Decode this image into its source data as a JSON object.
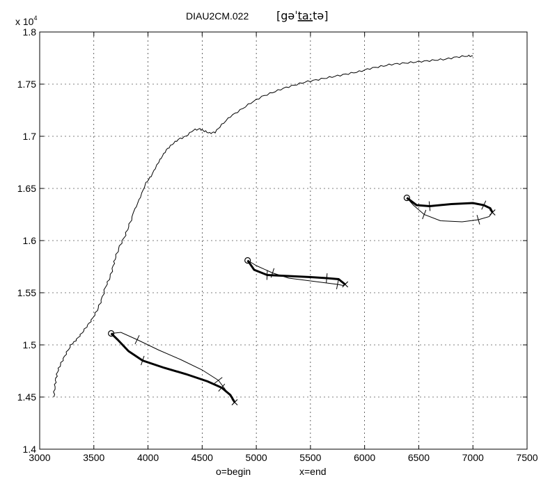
{
  "chart_data": {
    "type": "line",
    "title": "DIAU2CM.022",
    "transcription": {
      "open_bracket": "[",
      "prefix": "gə",
      "stress_mark": "ˈ",
      "stressed": "taː",
      "suffix": "tə",
      "close_bracket": "]"
    },
    "xlabel": "",
    "xlabel_notes": [
      "o=begin",
      "x=end"
    ],
    "ylabel": "",
    "y_multiplier": "x 10",
    "y_multiplier_exp": "4",
    "xlim": [
      3000,
      7500
    ],
    "ylim": [
      14000,
      18000
    ],
    "grid": true,
    "xticks": [
      3000,
      3500,
      4000,
      4500,
      5000,
      5500,
      6000,
      6500,
      7000,
      7500
    ],
    "xtick_labels": [
      "3000",
      "3500",
      "4000",
      "4500",
      "5000",
      "5500",
      "6000",
      "6500",
      "7000",
      "7500"
    ],
    "yticks": [
      14000,
      14500,
      15000,
      15500,
      16000,
      16500,
      17000,
      17500,
      18000
    ],
    "ytick_labels": [
      "1.4",
      "1.45",
      "1.5",
      "1.55",
      "1.6",
      "1.65",
      "1.7",
      "1.75",
      "1.8"
    ],
    "series": [
      {
        "style": "thin-noisy",
        "x": [
          3130,
          3140,
          3150,
          3170,
          3200,
          3240,
          3290,
          3330,
          3380,
          3430,
          3480,
          3530,
          3570,
          3610,
          3650,
          3680,
          3700,
          3740,
          3790,
          3830,
          3880,
          3930,
          3980,
          4030,
          4080,
          4120,
          4170,
          4220,
          4280,
          4350,
          4420,
          4480,
          4520,
          4570,
          4620,
          4680,
          4760,
          4850,
          4950,
          5050,
          5150,
          5250,
          5350,
          5450,
          5550,
          5650,
          5750,
          5850,
          5950,
          6050,
          6150,
          6250,
          6350,
          6450,
          6550,
          6650,
          6750,
          6850,
          6950,
          7000
        ],
        "y": [
          14500,
          14600,
          14680,
          14760,
          14830,
          14910,
          15000,
          15040,
          15100,
          15170,
          15240,
          15330,
          15430,
          15560,
          15650,
          15760,
          15840,
          15950,
          16050,
          16160,
          16300,
          16420,
          16550,
          16620,
          16720,
          16790,
          16870,
          16920,
          16970,
          17000,
          17060,
          17070,
          17050,
          17030,
          17040,
          17110,
          17190,
          17250,
          17320,
          17380,
          17420,
          17460,
          17490,
          17520,
          17540,
          17560,
          17580,
          17600,
          17620,
          17650,
          17670,
          17690,
          17700,
          17710,
          17720,
          17730,
          17740,
          17760,
          17770,
          17770
        ]
      },
      {
        "style": "loop",
        "x": [
          3660,
          3750,
          3900,
          4100,
          4300,
          4500,
          4650,
          4730,
          4800
        ],
        "y": [
          15110,
          15120,
          15050,
          14950,
          14860,
          14760,
          14660,
          14550,
          14450
        ],
        "thick_x": [
          3660,
          3720,
          3820,
          3950,
          4150,
          4350,
          4550,
          4680,
          4760,
          4800
        ],
        "thick_y": [
          15110,
          15050,
          14940,
          14850,
          14780,
          14720,
          14650,
          14590,
          14520,
          14450
        ]
      },
      {
        "style": "loop",
        "x": [
          4920,
          5000,
          5150,
          5300,
          5450,
          5600,
          5750,
          5800,
          5820
        ],
        "y": [
          15810,
          15760,
          15690,
          15640,
          15620,
          15600,
          15580,
          15570,
          15580
        ],
        "thick_x": [
          4920,
          4980,
          5100,
          5300,
          5500,
          5650,
          5760,
          5820
        ],
        "thick_y": [
          15810,
          15720,
          15670,
          15660,
          15650,
          15640,
          15630,
          15580
        ]
      },
      {
        "style": "loop",
        "x": [
          6390,
          6450,
          6550,
          6700,
          6900,
          7050,
          7150,
          7180
        ],
        "y": [
          16410,
          16340,
          16250,
          16190,
          16180,
          16200,
          16230,
          16270
        ],
        "thick_x": [
          6390,
          6480,
          6600,
          6800,
          7000,
          7100,
          7160,
          7180
        ],
        "thick_y": [
          16410,
          16340,
          16330,
          16350,
          16360,
          16340,
          16310,
          16270
        ]
      }
    ]
  }
}
